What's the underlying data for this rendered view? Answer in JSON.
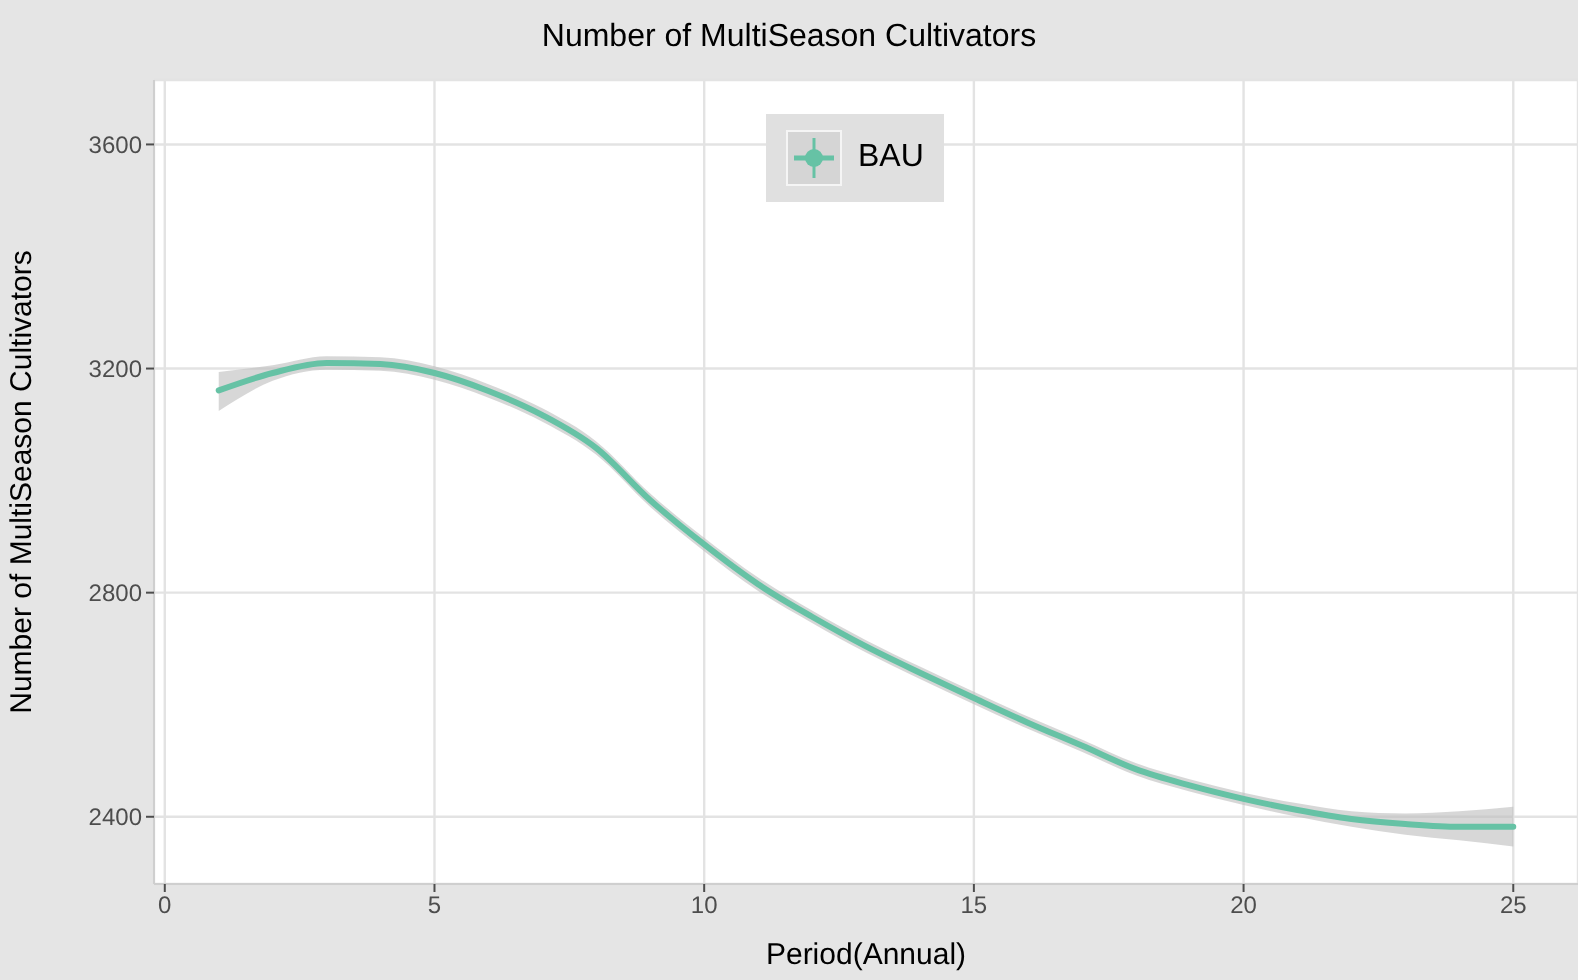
{
  "chart_data": {
    "type": "line",
    "title": "Number of MultiSeason Cultivators",
    "xlabel": "Period(Annual)",
    "ylabel": "Number of MultiSeason Cultivators",
    "x": [
      1,
      2,
      3,
      4,
      5,
      6,
      7,
      8,
      9,
      10,
      11,
      12,
      13,
      14,
      15,
      16,
      17,
      18,
      19,
      20,
      21,
      22,
      23,
      24,
      25
    ],
    "series": [
      {
        "name": "BAU",
        "color": "#66c2a5",
        "values": [
          3161,
          3192,
          3210,
          3208,
          3192,
          3160,
          3117,
          3058,
          2965,
          2886,
          2815,
          2757,
          2704,
          2657,
          2612,
          2568,
          2527,
          2485,
          2456,
          2432,
          2412,
          2396,
          2387,
          2382,
          2382
        ],
        "lower": [
          3124,
          3178,
          3198,
          3196,
          3180,
          3148,
          3105,
          3046,
          2953,
          2874,
          2803,
          2746,
          2693,
          2646,
          2601,
          2557,
          2516,
          2474,
          2445,
          2421,
          2400,
          2382,
          2368,
          2358,
          2347
        ],
        "upper": [
          3194,
          3206,
          3222,
          3220,
          3204,
          3172,
          3129,
          3070,
          2977,
          2898,
          2827,
          2768,
          2715,
          2668,
          2623,
          2579,
          2538,
          2496,
          2467,
          2443,
          2424,
          2410,
          2406,
          2410,
          2418
        ]
      }
    ],
    "xlim": [
      -0.2,
      26.2
    ],
    "xticks": [
      0,
      5,
      10,
      15,
      20,
      25
    ],
    "ylim": [
      2280,
      3715
    ],
    "yticks": [
      2400,
      2800,
      3200,
      3600
    ],
    "grid": true,
    "legend": "top",
    "marker": "none",
    "line_style": "solid"
  }
}
